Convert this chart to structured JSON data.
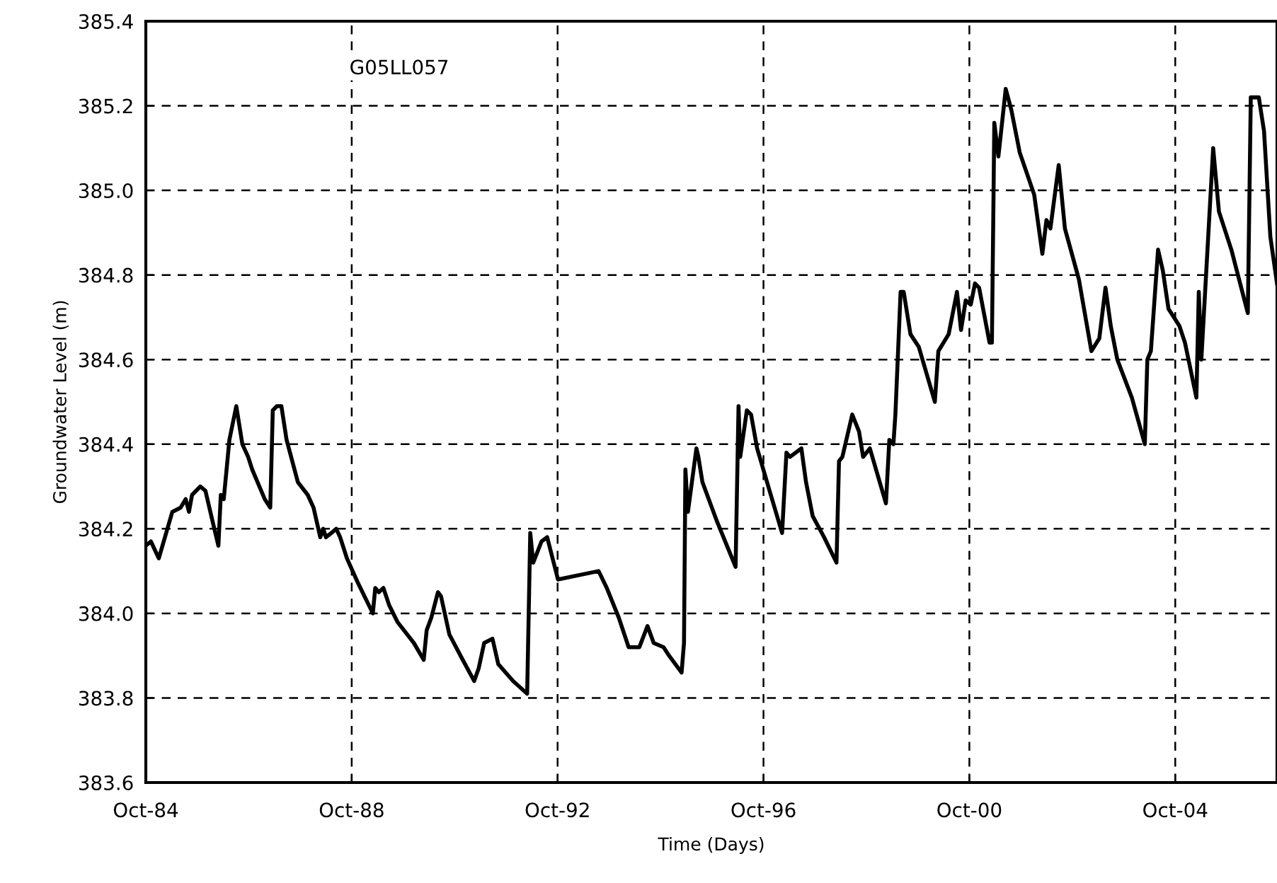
{
  "chart_data": {
    "type": "line",
    "xlabel": "Time (Days)",
    "ylabel": "Groundwater Level (m)",
    "annotations": [
      "G05LL057"
    ],
    "xlim": [
      "1984-10-01",
      "2006-09-23"
    ],
    "ylim": [
      383.6,
      385.4
    ],
    "xticks": [
      {
        "value": "1984-10-01",
        "label": "Oct-84"
      },
      {
        "value": "1988-10-01",
        "label": "Oct-88"
      },
      {
        "value": "1992-10-01",
        "label": "Oct-92"
      },
      {
        "value": "1996-10-01",
        "label": "Oct-96"
      },
      {
        "value": "2000-10-01",
        "label": "Oct-00"
      },
      {
        "value": "2004-10-01",
        "label": "Oct-04"
      }
    ],
    "yticks": [
      {
        "value": 383.6,
        "label": "383.6"
      },
      {
        "value": 383.8,
        "label": "383.8"
      },
      {
        "value": 384.0,
        "label": "384.0"
      },
      {
        "value": 384.2,
        "label": "384.2"
      },
      {
        "value": 384.4,
        "label": "384.4"
      },
      {
        "value": 384.6,
        "label": "384.6"
      },
      {
        "value": 384.8,
        "label": "384.8"
      },
      {
        "value": 385.0,
        "label": "385.0"
      },
      {
        "value": 385.2,
        "label": "385.2"
      },
      {
        "value": 385.4,
        "label": "385.4"
      }
    ],
    "grid": true,
    "marker": "none",
    "line_style": "solid",
    "series": [
      {
        "color": "#000000",
        "x": [
          "1984-10-01",
          "1984-11-06",
          "1985-01-01",
          "1985-04-07",
          "1985-06-05",
          "1985-07-11",
          "1985-08-03",
          "1985-08-25",
          "1985-10-23",
          "1985-11-28",
          "1986-01-23",
          "1986-02-28",
          "1986-03-17",
          "1986-04-07",
          "1986-05-17",
          "1986-07-05",
          "1986-08-17",
          "1986-09-27",
          "1986-10-26",
          "1987-01-23",
          "1987-03-03",
          "1987-03-21",
          "1987-04-19",
          "1987-05-21",
          "1987-06-27",
          "1987-09-15",
          "1987-11-24",
          "1988-01-04",
          "1988-02-21",
          "1988-03-13",
          "1988-04-01",
          "1988-05-10",
          "1988-06-13",
          "1988-07-11",
          "1988-08-28",
          "1988-11-17",
          "1989-02-28",
          "1989-03-17",
          "1989-04-11",
          "1989-05-14",
          "1989-06-23",
          "1989-08-21",
          "1989-12-16",
          "1990-02-24",
          "1990-03-17",
          "1990-04-19",
          "1990-06-05",
          "1990-06-27",
          "1990-08-25",
          "1990-11-28",
          "1991-02-17",
          "1991-03-21",
          "1991-04-29",
          "1991-06-27",
          "1991-08-07",
          "1991-11-20",
          "1992-02-28",
          "1992-03-21",
          "1992-04-11",
          "1992-06-09",
          "1992-07-19",
          "1992-10-04",
          "1993-07-19",
          "1993-09-15",
          "1993-12-09",
          "1994-02-17",
          "1994-05-04",
          "1994-07-01",
          "1994-08-14",
          "1994-10-23",
          "1994-12-01",
          "1995-02-28",
          "1995-03-17",
          "1995-03-27",
          "1995-04-14",
          "1995-06-13",
          "1995-06-27",
          "1995-07-26",
          "1995-11-03",
          "1996-03-17",
          "1996-04-07",
          "1996-04-19",
          "1996-06-05",
          "1996-07-05",
          "1996-08-17",
          "1996-11-13",
          "1997-02-10",
          "1997-03-13",
          "1997-04-07",
          "1997-06-27",
          "1997-07-30",
          "1997-09-15",
          "1997-12-05",
          "1998-03-03",
          "1998-03-21",
          "1998-04-14",
          "1998-06-23",
          "1998-08-10",
          "1998-09-08",
          "1998-10-26",
          "1999-02-17",
          "1999-03-13",
          "1999-04-11",
          "1999-04-25",
          "1999-06-01",
          "1999-06-23",
          "1999-08-10",
          "1999-10-08",
          "2000-01-30",
          "2000-02-24",
          "2000-05-07",
          "2000-07-05",
          "2000-08-03",
          "2000-09-05",
          "2000-10-11",
          "2000-11-10",
          "2000-12-09",
          "2001-02-21",
          "2001-03-10",
          "2001-03-27",
          "2001-04-25",
          "2001-06-16",
          "2001-07-26",
          "2001-09-23",
          "2002-01-04",
          "2002-03-03",
          "2002-04-01",
          "2002-04-29",
          "2002-06-27",
          "2002-08-10",
          "2002-11-17",
          "2003-02-14",
          "2003-04-11",
          "2003-05-25",
          "2003-07-01",
          "2003-08-17",
          "2003-11-28",
          "2004-02-28",
          "2004-03-17",
          "2004-04-11",
          "2004-06-01",
          "2004-07-05",
          "2004-08-14",
          "2004-10-30",
          "2004-12-09",
          "2005-02-28",
          "2005-03-17",
          "2005-04-04",
          "2005-06-27",
          "2005-08-07",
          "2005-11-03",
          "2006-02-28",
          "2006-03-21",
          "2006-05-17",
          "2006-06-23",
          "2006-08-07",
          "2006-09-23"
        ],
        "values": [
          384.16,
          384.17,
          384.13,
          384.24,
          384.25,
          384.27,
          384.24,
          384.28,
          384.3,
          384.29,
          384.21,
          384.16,
          384.28,
          384.27,
          384.41,
          384.49,
          384.4,
          384.37,
          384.34,
          384.27,
          384.25,
          384.48,
          384.49,
          384.49,
          384.41,
          384.31,
          384.28,
          384.25,
          384.18,
          384.2,
          384.18,
          384.19,
          384.2,
          384.18,
          384.13,
          384.07,
          384.0,
          384.06,
          384.05,
          384.06,
          384.02,
          383.98,
          383.93,
          383.89,
          383.96,
          383.99,
          384.05,
          384.04,
          383.95,
          383.89,
          383.84,
          383.87,
          383.93,
          383.94,
          383.88,
          383.84,
          383.81,
          384.19,
          384.12,
          384.17,
          384.18,
          384.08,
          384.1,
          384.06,
          383.99,
          383.92,
          383.92,
          383.97,
          383.93,
          383.92,
          383.9,
          383.86,
          383.93,
          384.34,
          384.24,
          384.39,
          384.37,
          384.31,
          384.22,
          384.11,
          384.49,
          384.37,
          384.48,
          384.47,
          384.39,
          384.29,
          384.19,
          384.38,
          384.37,
          384.39,
          384.31,
          384.23,
          384.18,
          384.12,
          384.36,
          384.37,
          384.47,
          384.43,
          384.37,
          384.39,
          384.26,
          384.41,
          384.4,
          384.47,
          384.76,
          384.76,
          384.66,
          384.63,
          384.5,
          384.62,
          384.66,
          384.76,
          384.67,
          384.74,
          384.73,
          384.78,
          384.77,
          384.64,
          384.64,
          385.16,
          385.08,
          385.24,
          385.19,
          385.09,
          384.99,
          384.85,
          384.93,
          384.91,
          385.06,
          384.91,
          384.79,
          384.62,
          384.65,
          384.77,
          384.68,
          384.6,
          384.51,
          384.4,
          384.6,
          384.62,
          384.86,
          384.81,
          384.72,
          384.68,
          384.64,
          384.51,
          384.76,
          384.6,
          385.1,
          384.95,
          384.86,
          384.71,
          385.22,
          385.22,
          385.14,
          384.89,
          384.78
        ]
      }
    ]
  }
}
